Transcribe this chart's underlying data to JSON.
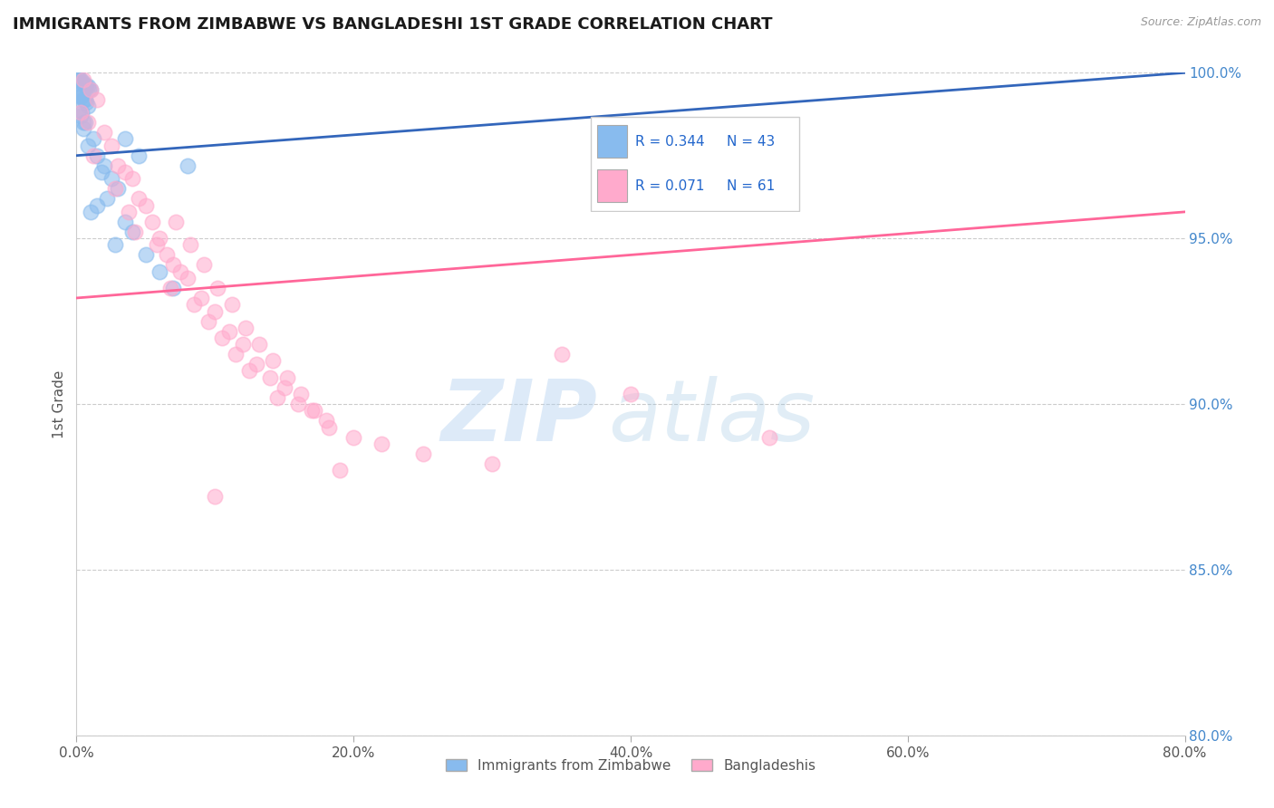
{
  "title": "IMMIGRANTS FROM ZIMBABWE VS BANGLADESHI 1ST GRADE CORRELATION CHART",
  "source": "Source: ZipAtlas.com",
  "ylabel": "1st Grade",
  "xlim": [
    0.0,
    80.0
  ],
  "ylim": [
    80.0,
    100.0
  ],
  "xticks": [
    0.0,
    20.0,
    40.0,
    60.0,
    80.0
  ],
  "yticks": [
    80.0,
    85.0,
    90.0,
    95.0,
    100.0
  ],
  "legend_labels": [
    "Immigrants from Zimbabwe",
    "Bangladeshis"
  ],
  "R_blue": 0.344,
  "N_blue": 43,
  "R_pink": 0.071,
  "N_pink": 61,
  "blue_color": "#88BBEE",
  "pink_color": "#FFAACC",
  "trend_blue_color": "#3366BB",
  "trend_pink_color": "#FF6699",
  "watermark_zip": "ZIP",
  "watermark_atlas": "atlas",
  "blue_scatter": [
    [
      0.1,
      99.9
    ],
    [
      0.2,
      99.8
    ],
    [
      0.3,
      99.8
    ],
    [
      0.4,
      99.7
    ],
    [
      0.5,
      99.7
    ],
    [
      0.6,
      99.6
    ],
    [
      0.7,
      99.6
    ],
    [
      0.8,
      99.6
    ],
    [
      0.9,
      99.5
    ],
    [
      1.0,
      99.5
    ],
    [
      0.1,
      99.4
    ],
    [
      0.2,
      99.4
    ],
    [
      0.3,
      99.3
    ],
    [
      0.4,
      99.3
    ],
    [
      0.5,
      99.2
    ],
    [
      0.6,
      99.2
    ],
    [
      0.7,
      99.1
    ],
    [
      0.8,
      99.0
    ],
    [
      0.2,
      98.9
    ],
    [
      0.4,
      98.8
    ],
    [
      0.3,
      98.7
    ],
    [
      0.6,
      98.5
    ],
    [
      0.5,
      98.3
    ],
    [
      1.2,
      98.0
    ],
    [
      0.8,
      97.8
    ],
    [
      1.5,
      97.5
    ],
    [
      2.0,
      97.2
    ],
    [
      1.8,
      97.0
    ],
    [
      2.5,
      96.8
    ],
    [
      3.0,
      96.5
    ],
    [
      2.2,
      96.2
    ],
    [
      1.0,
      95.8
    ],
    [
      3.5,
      95.5
    ],
    [
      4.0,
      95.2
    ],
    [
      2.8,
      94.8
    ],
    [
      5.0,
      94.5
    ],
    [
      6.0,
      94.0
    ],
    [
      7.0,
      93.5
    ],
    [
      3.5,
      98.0
    ],
    [
      4.5,
      97.5
    ],
    [
      1.5,
      96.0
    ],
    [
      0.5,
      98.5
    ],
    [
      8.0,
      97.2
    ]
  ],
  "pink_scatter": [
    [
      0.5,
      99.8
    ],
    [
      1.0,
      99.5
    ],
    [
      1.5,
      99.2
    ],
    [
      0.3,
      98.8
    ],
    [
      0.8,
      98.5
    ],
    [
      2.0,
      98.2
    ],
    [
      2.5,
      97.8
    ],
    [
      1.2,
      97.5
    ],
    [
      3.0,
      97.2
    ],
    [
      3.5,
      97.0
    ],
    [
      4.0,
      96.8
    ],
    [
      2.8,
      96.5
    ],
    [
      4.5,
      96.2
    ],
    [
      5.0,
      96.0
    ],
    [
      3.8,
      95.8
    ],
    [
      5.5,
      95.5
    ],
    [
      4.2,
      95.2
    ],
    [
      6.0,
      95.0
    ],
    [
      5.8,
      94.8
    ],
    [
      6.5,
      94.5
    ],
    [
      7.0,
      94.2
    ],
    [
      7.5,
      94.0
    ],
    [
      8.0,
      93.8
    ],
    [
      6.8,
      93.5
    ],
    [
      9.0,
      93.2
    ],
    [
      8.5,
      93.0
    ],
    [
      10.0,
      92.8
    ],
    [
      9.5,
      92.5
    ],
    [
      11.0,
      92.2
    ],
    [
      10.5,
      92.0
    ],
    [
      12.0,
      91.8
    ],
    [
      11.5,
      91.5
    ],
    [
      13.0,
      91.2
    ],
    [
      12.5,
      91.0
    ],
    [
      14.0,
      90.8
    ],
    [
      15.0,
      90.5
    ],
    [
      14.5,
      90.2
    ],
    [
      16.0,
      90.0
    ],
    [
      17.0,
      89.8
    ],
    [
      18.0,
      89.5
    ],
    [
      7.2,
      95.5
    ],
    [
      8.2,
      94.8
    ],
    [
      9.2,
      94.2
    ],
    [
      10.2,
      93.5
    ],
    [
      11.2,
      93.0
    ],
    [
      12.2,
      92.3
    ],
    [
      13.2,
      91.8
    ],
    [
      14.2,
      91.3
    ],
    [
      15.2,
      90.8
    ],
    [
      16.2,
      90.3
    ],
    [
      17.2,
      89.8
    ],
    [
      18.2,
      89.3
    ],
    [
      20.0,
      89.0
    ],
    [
      22.0,
      88.8
    ],
    [
      25.0,
      88.5
    ],
    [
      30.0,
      88.2
    ],
    [
      10.0,
      87.2
    ],
    [
      35.0,
      91.5
    ],
    [
      40.0,
      90.3
    ],
    [
      50.0,
      89.0
    ],
    [
      19.0,
      88.0
    ]
  ],
  "blue_trend_endpoints": [
    [
      0.0,
      97.5
    ],
    [
      80.0,
      100.0
    ]
  ],
  "pink_trend_endpoints": [
    [
      0.0,
      93.2
    ],
    [
      80.0,
      95.8
    ]
  ]
}
